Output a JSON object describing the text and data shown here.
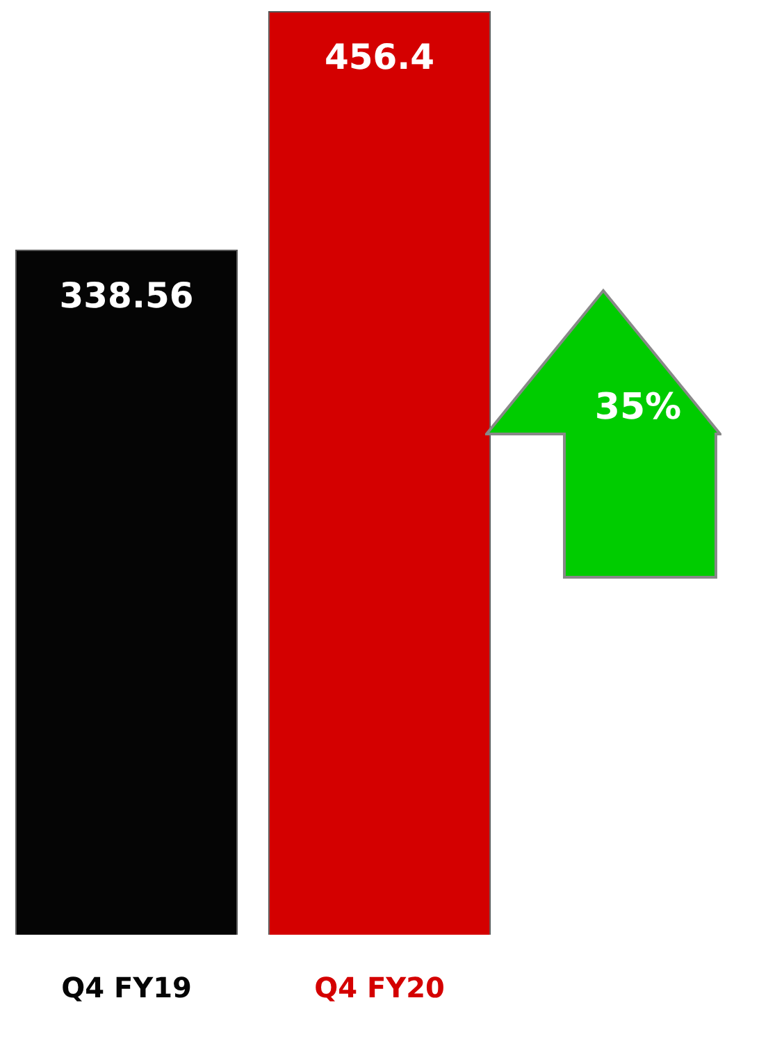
{
  "chart_data": {
    "type": "bar",
    "categories": [
      "Q4 FY19",
      "Q4 FY20"
    ],
    "values": [
      338.56,
      456.4
    ],
    "colors": [
      "#050505",
      "#d40000"
    ],
    "data_labels": true,
    "grid": false,
    "legend": false,
    "annotations": [
      "35%"
    ]
  }
}
